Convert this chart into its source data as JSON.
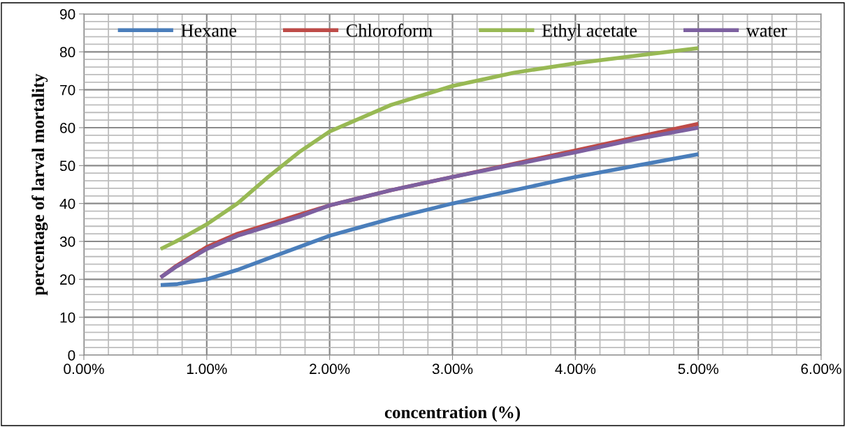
{
  "chart_data": {
    "type": "line",
    "xlabel": "concentration (%)",
    "ylabel": "percentage of larval mortality",
    "x": [
      0.625,
      0.75,
      1,
      1.25,
      1.5,
      1.75,
      2,
      2.5,
      3,
      3.5,
      4,
      4.5,
      5
    ],
    "series": [
      {
        "name": "Hexane",
        "color": "#4a7ebb",
        "values": [
          18.5,
          18.7,
          20,
          22.5,
          25.5,
          28.5,
          31.5,
          36,
          40,
          43.5,
          47,
          50,
          53
        ]
      },
      {
        "name": "Chloroform",
        "color": "#be4b48",
        "values": [
          20.5,
          23.5,
          28.5,
          32,
          34.5,
          37,
          39.5,
          43.5,
          47,
          50.5,
          54,
          57.5,
          61
        ]
      },
      {
        "name": "Ethyl acetate",
        "color": "#98b954",
        "values": [
          28,
          30,
          34.5,
          40,
          47,
          53.5,
          59,
          66,
          71,
          74.5,
          77,
          79,
          81
        ]
      },
      {
        "name": "water",
        "color": "#7d60a0",
        "values": [
          20.5,
          23.3,
          28,
          31.5,
          34,
          36.5,
          39.5,
          43.5,
          47,
          50.3,
          53.5,
          57,
          60
        ]
      }
    ],
    "xlim": [
      0,
      6
    ],
    "xticks": [
      {
        "value": 0,
        "label": "0.00%"
      },
      {
        "value": 1,
        "label": "1.00%"
      },
      {
        "value": 2,
        "label": "2.00%"
      },
      {
        "value": 3,
        "label": "3.00%"
      },
      {
        "value": 4,
        "label": "4.00%"
      },
      {
        "value": 5,
        "label": "5.00%"
      },
      {
        "value": 6,
        "label": "6.00%"
      }
    ],
    "ylim": [
      0,
      90
    ],
    "yticks": [
      0,
      10,
      20,
      30,
      40,
      50,
      60,
      70,
      80,
      90
    ],
    "grid": true,
    "legend": "top",
    "marker": "none",
    "line_style": "solid"
  }
}
